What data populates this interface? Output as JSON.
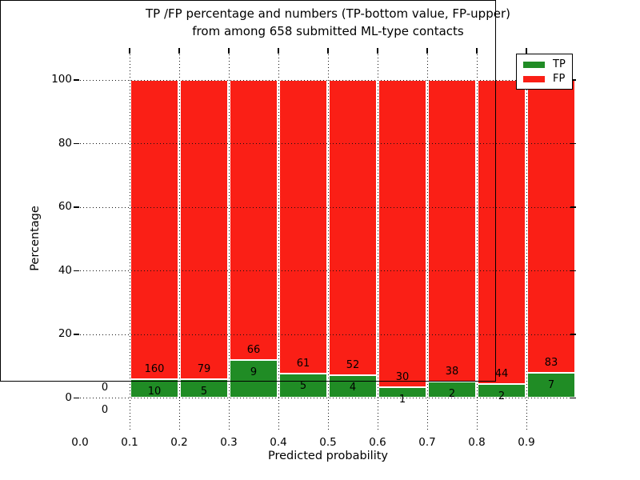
{
  "figure": {
    "title_line1": "TP /FP percentage and numbers (TP-bottom value, FP-upper)",
    "title_line2": "from among 658 submitted ML-type contacts"
  },
  "axes": {
    "xlabel": "Predicted probability",
    "ylabel": "Percentage",
    "x_ticks": [
      {
        "value": 0.0,
        "label": "0.0"
      },
      {
        "value": 0.1,
        "label": "0.1"
      },
      {
        "value": 0.2,
        "label": "0.2"
      },
      {
        "value": 0.3,
        "label": "0.3"
      },
      {
        "value": 0.4,
        "label": "0.4"
      },
      {
        "value": 0.5,
        "label": "0.5"
      },
      {
        "value": 0.6,
        "label": "0.6"
      },
      {
        "value": 0.7,
        "label": "0.7"
      },
      {
        "value": 0.8,
        "label": "0.8"
      },
      {
        "value": 0.9,
        "label": "0.9"
      }
    ],
    "y_ticks": [
      {
        "value": 0,
        "label": "0"
      },
      {
        "value": 20,
        "label": "20"
      },
      {
        "value": 40,
        "label": "40"
      },
      {
        "value": 60,
        "label": "60"
      },
      {
        "value": 80,
        "label": "80"
      },
      {
        "value": 100,
        "label": "100"
      }
    ],
    "xlim": [
      0.0,
      1.0
    ],
    "ylim": [
      -10,
      110
    ],
    "grid_style": "dotted"
  },
  "legend": {
    "position": "upper right",
    "entries": [
      {
        "label": "TP",
        "color": "#208c25"
      },
      {
        "label": "FP",
        "color": "#fa1f16"
      }
    ]
  },
  "chart_data": {
    "type": "bar",
    "stacked": true,
    "normalized_to_percent": true,
    "title": "TP /FP percentage and numbers (TP-bottom value, FP-upper) from among 658 submitted ML-type contacts",
    "xlabel": "Predicted probability",
    "ylabel": "Percentage",
    "xlim": [
      0.0,
      1.0
    ],
    "ylim": [
      -10,
      110
    ],
    "grid": true,
    "legend_position": "upper right",
    "total_contacts": 658,
    "bin_width": 0.1,
    "bin_starts": [
      0.0,
      0.1,
      0.2,
      0.3,
      0.4,
      0.5,
      0.6,
      0.7,
      0.8,
      0.9
    ],
    "series": [
      {
        "name": "TP",
        "color": "#208c25",
        "counts": [
          0,
          10,
          5,
          9,
          5,
          4,
          1,
          2,
          2,
          7
        ]
      },
      {
        "name": "FP",
        "color": "#fa1f16",
        "counts": [
          0,
          160,
          79,
          66,
          61,
          52,
          30,
          38,
          44,
          83
        ]
      }
    ],
    "bar_label_rule": "each bin shows FP count above TP count; TP bar height = TP/(TP+FP)*100, FP fills to 100%"
  },
  "colors": {
    "tp_green": "#208c25",
    "fp_red": "#fa1f16",
    "background": "#ffffff",
    "grid": "#111111",
    "text": "#000000"
  }
}
